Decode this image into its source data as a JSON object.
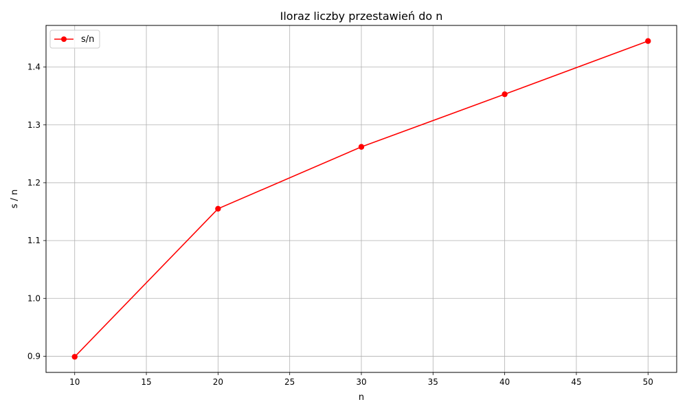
{
  "chart_data": {
    "type": "line",
    "title": "Iloraz liczby przestawień do n",
    "xlabel": "n",
    "ylabel": "s / n",
    "x": [
      10,
      20,
      30,
      40,
      50
    ],
    "series": [
      {
        "name": "s/n",
        "values": [
          0.899,
          1.155,
          1.262,
          1.353,
          1.445
        ]
      }
    ],
    "xlim": [
      8,
      52
    ],
    "ylim": [
      0.872,
      1.472
    ],
    "xticks": [
      10,
      15,
      20,
      25,
      30,
      35,
      40,
      45,
      50
    ],
    "yticks": [
      0.9,
      1.0,
      1.1,
      1.2,
      1.3,
      1.4
    ],
    "xtick_labels": [
      "10",
      "15",
      "20",
      "25",
      "30",
      "35",
      "40",
      "45",
      "50"
    ],
    "ytick_labels": [
      "0.9",
      "1.0",
      "1.1",
      "1.2",
      "1.3",
      "1.4"
    ],
    "grid": true,
    "legend_position": "top-left",
    "series_color": "#ff0000",
    "grid_color": "#b0b0b0",
    "marker": "circle"
  }
}
